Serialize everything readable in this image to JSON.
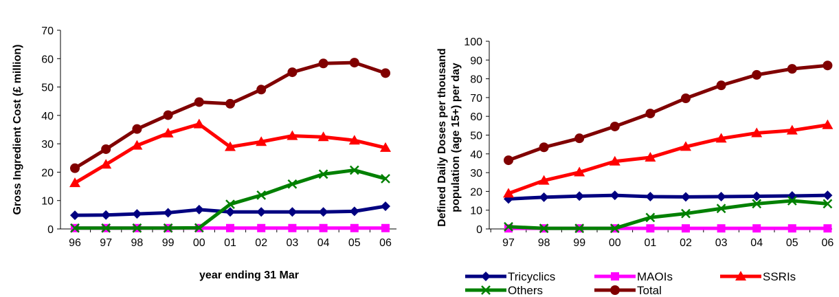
{
  "chart_data": [
    {
      "type": "line",
      "title": "",
      "xlabel": "year ending 31 Mar",
      "ylabel": "Gross Ingredient Cost (£ million)",
      "categories": [
        "96",
        "97",
        "98",
        "99",
        "00",
        "01",
        "02",
        "03",
        "04",
        "05",
        "06"
      ],
      "ylim": [
        0,
        70
      ],
      "yticks": [
        0,
        10,
        20,
        30,
        40,
        50,
        60,
        70
      ],
      "grid": false,
      "series": [
        {
          "name": "Tricyclics",
          "color": "#000080",
          "marker": "diamond",
          "values": [
            4.8,
            4.9,
            5.3,
            5.7,
            6.8,
            6.0,
            6.0,
            6.0,
            6.0,
            6.2,
            8.0
          ]
        },
        {
          "name": "MAOIs",
          "color": "#FF00FF",
          "marker": "square",
          "values": [
            0.3,
            0.3,
            0.3,
            0.3,
            0.3,
            0.3,
            0.3,
            0.3,
            0.3,
            0.3,
            0.3
          ]
        },
        {
          "name": "SSRIs",
          "color": "#FF0000",
          "marker": "triangle",
          "values": [
            16.2,
            22.7,
            29.4,
            33.7,
            36.9,
            28.9,
            30.7,
            32.8,
            32.4,
            31.2,
            28.6
          ]
        },
        {
          "name": "Others",
          "color": "#008000",
          "marker": "x",
          "values": [
            0.3,
            0.3,
            0.3,
            0.3,
            0.4,
            8.7,
            11.9,
            15.8,
            19.3,
            20.7,
            17.7
          ]
        },
        {
          "name": "Total",
          "color": "#800000",
          "marker": "circle",
          "values": [
            21.4,
            28.1,
            35.2,
            40.1,
            44.7,
            44.1,
            49.1,
            55.2,
            58.3,
            58.6,
            54.9
          ]
        }
      ]
    },
    {
      "type": "line",
      "title": "",
      "xlabel": "",
      "ylabel": "Defined Daily Doses per thousand population (age 15+) per day",
      "categories": [
        "97",
        "98",
        "99",
        "00",
        "01",
        "02",
        "03",
        "04",
        "05",
        "06"
      ],
      "ylim": [
        0,
        100
      ],
      "yticks": [
        0,
        10,
        20,
        30,
        40,
        50,
        60,
        70,
        80,
        90,
        100
      ],
      "grid": false,
      "legend": "bottom",
      "series": [
        {
          "name": "Tricyclics",
          "color": "#000080",
          "marker": "diamond",
          "values": [
            16.0,
            16.9,
            17.5,
            17.9,
            17.2,
            17.1,
            17.2,
            17.4,
            17.6,
            17.9
          ]
        },
        {
          "name": "MAOIs",
          "color": "#FF00FF",
          "marker": "square",
          "values": [
            0.3,
            0.3,
            0.3,
            0.3,
            0.3,
            0.3,
            0.3,
            0.3,
            0.3,
            0.3
          ]
        },
        {
          "name": "SSRIs",
          "color": "#FF0000",
          "marker": "triangle",
          "values": [
            18.9,
            25.8,
            30.2,
            36.0,
            38.1,
            43.8,
            48.2,
            51.1,
            52.5,
            55.4
          ]
        },
        {
          "name": "Others",
          "color": "#008000",
          "marker": "x",
          "values": [
            1.2,
            0.3,
            0.3,
            0.3,
            6.1,
            8.2,
            10.9,
            13.4,
            15.0,
            13.4
          ]
        },
        {
          "name": "Total",
          "color": "#800000",
          "marker": "circle",
          "values": [
            36.6,
            43.5,
            48.3,
            54.6,
            61.5,
            69.6,
            76.5,
            82.1,
            85.3,
            87.1
          ]
        }
      ]
    }
  ]
}
